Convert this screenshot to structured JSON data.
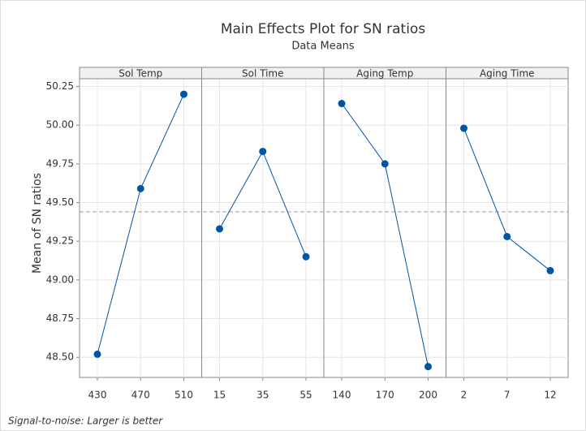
{
  "chart_data": {
    "type": "line",
    "title": "Main Effects Plot for SN ratios",
    "subtitle": "Data Means",
    "ylabel": "Mean of SN ratios",
    "footnote": "Signal-to-noise: Larger is better",
    "color": "#0054a6",
    "grid": true,
    "reference_line": 49.44,
    "ylim": [
      48.37,
      50.3
    ],
    "yticks": [
      {
        "value": 48.5,
        "label": "48.50"
      },
      {
        "value": 48.75,
        "label": "48.75"
      },
      {
        "value": 49.0,
        "label": "49.00"
      },
      {
        "value": 49.25,
        "label": "49.25"
      },
      {
        "value": 49.5,
        "label": "49.50"
      },
      {
        "value": 49.75,
        "label": "49.75"
      },
      {
        "value": 50.0,
        "label": "50.00"
      },
      {
        "value": 50.25,
        "label": "50.25"
      }
    ],
    "panels": [
      {
        "name": "Sol Temp",
        "categories": [
          "430",
          "470",
          "510"
        ],
        "values": [
          48.52,
          49.59,
          50.2
        ]
      },
      {
        "name": "Sol Time",
        "categories": [
          "15",
          "35",
          "55"
        ],
        "values": [
          49.33,
          49.83,
          49.15
        ]
      },
      {
        "name": "Aging Temp",
        "categories": [
          "140",
          "170",
          "200"
        ],
        "values": [
          50.14,
          49.75,
          48.44
        ]
      },
      {
        "name": "Aging Time",
        "categories": [
          "2",
          "7",
          "12"
        ],
        "values": [
          49.98,
          49.28,
          49.06
        ]
      }
    ]
  }
}
